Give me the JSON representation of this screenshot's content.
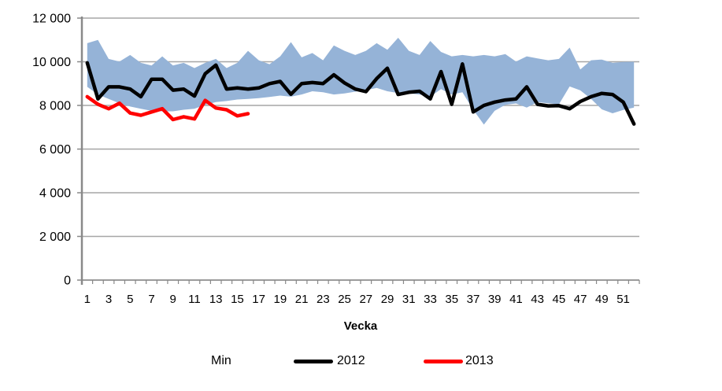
{
  "axis": {
    "xlabel": "Vecka"
  },
  "legend": {
    "items": [
      {
        "label": "Min",
        "marker_color": "none"
      },
      {
        "label": "2012",
        "marker_color": "#000000"
      },
      {
        "label": "2013",
        "marker_color": "#FF0000"
      }
    ]
  },
  "colors": {
    "band": "#95B3D7",
    "line_2012": "#000000",
    "line_2013": "#FF0000",
    "gridline": "#A6A6A6",
    "axis": "#898989",
    "text": "#000000"
  },
  "chart_data": {
    "type": "line",
    "title": "",
    "xlabel": "Vecka",
    "ylabel": "",
    "ylim": [
      0,
      12000
    ],
    "ytick_step": 2000,
    "ytick_labels": [
      "0",
      "2 000",
      "4 000",
      "6 000",
      "8 000",
      "10 000",
      "12 000"
    ],
    "x": [
      1,
      2,
      3,
      4,
      5,
      6,
      7,
      8,
      9,
      10,
      11,
      12,
      13,
      14,
      15,
      16,
      17,
      18,
      19,
      20,
      21,
      22,
      23,
      24,
      25,
      26,
      27,
      28,
      29,
      30,
      31,
      32,
      33,
      34,
      35,
      36,
      37,
      38,
      39,
      40,
      41,
      42,
      43,
      44,
      45,
      46,
      47,
      48,
      49,
      50,
      51,
      52
    ],
    "xtick_labels": [
      "1",
      "3",
      "5",
      "7",
      "9",
      "11",
      "13",
      "15",
      "17",
      "19",
      "21",
      "23",
      "25",
      "27",
      "29",
      "31",
      "33",
      "35",
      "37",
      "39",
      "41",
      "43",
      "45",
      "47",
      "49",
      "51"
    ],
    "grid": true,
    "legend_position": "bottom",
    "series": [
      {
        "name": "Min",
        "type": "band",
        "color": "#95B3D7",
        "max": [
          10850,
          11000,
          10130,
          10010,
          10310,
          9950,
          9830,
          10250,
          9830,
          9950,
          9710,
          9950,
          10130,
          9710,
          9950,
          10500,
          10070,
          9890,
          10250,
          10900,
          10200,
          10400,
          10070,
          10750,
          10500,
          10310,
          10500,
          10850,
          10550,
          11100,
          10500,
          10310,
          10950,
          10450,
          10250,
          10310,
          10250,
          10310,
          10250,
          10350,
          10010,
          10250,
          10150,
          10070,
          10130,
          10650,
          9650,
          10070,
          10100,
          9950,
          9990,
          10000
        ],
        "min": [
          8850,
          8500,
          8300,
          8100,
          7950,
          7850,
          7750,
          7730,
          7730,
          7800,
          7850,
          8030,
          8150,
          8200,
          8270,
          8300,
          8330,
          8390,
          8450,
          8400,
          8500,
          8650,
          8600,
          8500,
          8550,
          8630,
          8700,
          8800,
          8650,
          8570,
          8550,
          8500,
          8400,
          8750,
          8500,
          8600,
          7800,
          7120,
          7750,
          8030,
          8090,
          7900,
          8150,
          8100,
          8050,
          8870,
          8690,
          8300,
          7820,
          7640,
          7790,
          7900
        ]
      },
      {
        "name": "2012",
        "type": "line",
        "color": "#000000",
        "values": [
          9950,
          8300,
          8850,
          8850,
          8750,
          8400,
          9200,
          9200,
          8700,
          8750,
          8430,
          9450,
          9850,
          8750,
          8800,
          8750,
          8800,
          9000,
          9100,
          8510,
          9000,
          9050,
          9000,
          9400,
          9030,
          8750,
          8630,
          9230,
          9700,
          8500,
          8600,
          8650,
          8300,
          9550,
          8050,
          9900,
          7700,
          8000,
          8150,
          8250,
          8300,
          8850,
          8050,
          7980,
          7990,
          7850,
          8180,
          8400,
          8550,
          8500,
          8150,
          7150
        ]
      },
      {
        "name": "2013",
        "type": "line",
        "color": "#FF0000",
        "values": [
          8400,
          8050,
          7850,
          8100,
          7650,
          7550,
          7700,
          7850,
          7350,
          7480,
          7380,
          8230,
          7880,
          7800,
          7520,
          7620
        ]
      }
    ]
  }
}
